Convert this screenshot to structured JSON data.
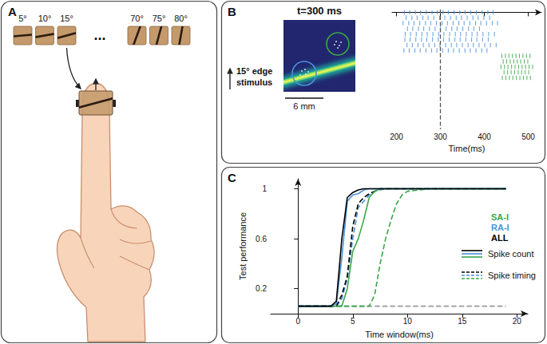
{
  "panels": {
    "A": {
      "label": "A",
      "stimuli": [
        {
          "label": "5°",
          "angle": 5
        },
        {
          "label": "10°",
          "angle": 10
        },
        {
          "label": "15°",
          "angle": 15
        },
        {
          "label": "..."
        },
        {
          "label": "70°",
          "angle": 70
        },
        {
          "label": "75°",
          "angle": 75
        },
        {
          "label": "80°",
          "angle": 80
        }
      ]
    },
    "B": {
      "label": "B",
      "heatmap": {
        "title": "t=300 ms",
        "edge_angle": 15,
        "stimulus_label": "15° edge stimulus",
        "scale_bar": "6 mm"
      }
    },
    "C": {
      "label": "C"
    }
  },
  "chart_data": [
    {
      "type": "raster",
      "x_label": "Time(ms)",
      "xlim": [
        190,
        530
      ],
      "xticks": [
        200,
        300,
        400,
        500
      ],
      "reference_x": 300,
      "tick_labels": "x",
      "series": [
        {
          "color": "#4a90d9",
          "spikes": [
            [
              218,
              230,
              243,
              255,
              268,
              281,
              293,
              306,
              318,
              331,
              344,
              356,
              369,
              382,
              395,
              408,
              420
            ],
            [
              222,
              235,
              247,
              260,
              272,
              285,
              298,
              310,
              323,
              336,
              348,
              361,
              374,
              386,
              399,
              412
            ],
            [
              215,
              228,
              240,
              253,
              266,
              278,
              291,
              304,
              316,
              329,
              342,
              354,
              367,
              380,
              392,
              405,
              418,
              430
            ],
            [
              225,
              237,
              250,
              262,
              275,
              288,
              300,
              313,
              326,
              338,
              351,
              364,
              376,
              389
            ],
            [
              220,
              232,
              245,
              258,
              270,
              283,
              296,
              308,
              321,
              334,
              346,
              359,
              372,
              384,
              397,
              410,
              423
            ],
            [
              219,
              231,
              244,
              257,
              269,
              282,
              295,
              307,
              320,
              333,
              345,
              358,
              371,
              383,
              396,
              409
            ],
            [
              224,
              236,
              249,
              261,
              274,
              287,
              299,
              312,
              325,
              337,
              350,
              363,
              375,
              388,
              401,
              414,
              427
            ],
            [
              217,
              229,
              242,
              254,
              267,
              280,
              292,
              305,
              318,
              330,
              343,
              356,
              368,
              381,
              394,
              406
            ]
          ]
        },
        {
          "color": "#3aa64a",
          "spikes": [
            [
              440,
              448,
              456,
              464,
              472,
              480,
              488,
              496,
              504
            ],
            [
              443,
              451,
              459,
              467,
              475,
              483,
              491,
              499
            ],
            [
              438,
              446,
              454,
              462,
              470,
              478,
              486,
              494,
              502,
              510
            ],
            [
              445,
              453,
              461,
              469,
              477,
              485,
              493,
              501
            ],
            [
              441,
              449,
              457,
              465,
              473,
              481,
              489,
              497,
              505
            ]
          ]
        }
      ]
    },
    {
      "type": "line",
      "x_label": "Time window(ms)",
      "y_label": "Test performance",
      "xlim": [
        -2.5,
        21
      ],
      "xticks": [
        0,
        5,
        10,
        15,
        20
      ],
      "ylim": [
        0,
        1.08
      ],
      "yticks": [
        0.2,
        0.6,
        1
      ],
      "legend": "right",
      "x": [
        0,
        1,
        2,
        3,
        3.5,
        4,
        4.5,
        5,
        5.5,
        6,
        6.5,
        7,
        7.5,
        8,
        8.5,
        9,
        9.5,
        10,
        11,
        12,
        13,
        14,
        15,
        16,
        17,
        18,
        19
      ],
      "series": [
        {
          "color": "#999999",
          "line_style": "dashed",
          "values": [
            0.06,
            0.06,
            0.06,
            0.06,
            0.06,
            0.06,
            0.06,
            0.06,
            0.06,
            0.06,
            0.06,
            0.06,
            0.06,
            0.06,
            0.06,
            0.06,
            0.06,
            0.06,
            0.06,
            0.06,
            0.06,
            0.06,
            0.06,
            0.06,
            0.06,
            0.06,
            0.06
          ]
        },
        {
          "name": "SA-I",
          "measure": "Spike timing",
          "color": "#3aa64a",
          "line_style": "dashed",
          "values": [
            0.06,
            0.06,
            0.06,
            0.06,
            0.06,
            0.06,
            0.06,
            0.06,
            0.06,
            0.06,
            0.06,
            0.15,
            0.4,
            0.6,
            0.75,
            0.88,
            0.95,
            0.98,
            0.99,
            1,
            1,
            1,
            1,
            1,
            1,
            1,
            1
          ]
        },
        {
          "name": "RA-I",
          "measure": "Spike timing",
          "color": "#4a90d9",
          "line_style": "dashed",
          "values": [
            0.06,
            0.06,
            0.06,
            0.06,
            0.06,
            0.12,
            0.28,
            0.6,
            0.85,
            0.9,
            0.95,
            0.98,
            0.99,
            1,
            1,
            1,
            1,
            1,
            1,
            1,
            1,
            1,
            1,
            1,
            1,
            1,
            1
          ]
        },
        {
          "name": "ALL",
          "measure": "Spike timing",
          "color": "#000000",
          "line_style": "dashed",
          "values": [
            0.06,
            0.06,
            0.06,
            0.06,
            0.06,
            0.15,
            0.3,
            0.7,
            0.88,
            0.93,
            0.96,
            0.98,
            1,
            1,
            1,
            1,
            1,
            1,
            1,
            1,
            1,
            1,
            1,
            1,
            1,
            1,
            1
          ]
        },
        {
          "name": "SA-I",
          "measure": "Spike count",
          "color": "#3aa64a",
          "line_style": "solid",
          "values": [
            0.06,
            0.06,
            0.06,
            0.06,
            0.06,
            0.06,
            0.2,
            0.5,
            0.6,
            0.75,
            0.93,
            0.98,
            1,
            1,
            1,
            1,
            1,
            1,
            1,
            1,
            1,
            1,
            1,
            1,
            1,
            1,
            1
          ]
        },
        {
          "name": "RA-I",
          "measure": "Spike count",
          "color": "#4a90d9",
          "line_style": "solid",
          "values": [
            0.06,
            0.06,
            0.06,
            0.06,
            0.08,
            0.45,
            0.9,
            0.95,
            0.96,
            0.99,
            1,
            1,
            1,
            1,
            1,
            1,
            1,
            1,
            1,
            1,
            1,
            1,
            1,
            1,
            1,
            1,
            1
          ]
        },
        {
          "name": "ALL",
          "measure": "Spike count",
          "color": "#000000",
          "line_style": "solid",
          "values": [
            0.06,
            0.06,
            0.06,
            0.06,
            0.1,
            0.6,
            0.93,
            0.97,
            0.99,
            1,
            1,
            1,
            1,
            1,
            1,
            1,
            1,
            1,
            1,
            1,
            1,
            1,
            1,
            1,
            1,
            1,
            1
          ]
        }
      ]
    }
  ]
}
